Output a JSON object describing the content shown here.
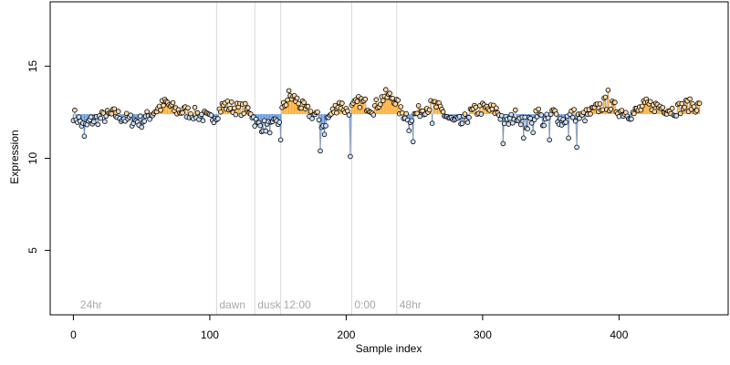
{
  "chart_data": {
    "type": "scatter",
    "title": "",
    "xlabel": "Sample index",
    "ylabel": "Expression",
    "xlim": [
      -17,
      480
    ],
    "ylim": [
      1.5,
      18.5
    ],
    "x_ticks": [
      0,
      100,
      200,
      300,
      400
    ],
    "y_ticks": [
      5,
      10,
      15
    ],
    "baseline": 12.4,
    "grid": false,
    "legend": "none",
    "annotations": [
      {
        "x": 3,
        "label": "24hr",
        "line": false
      },
      {
        "x": 105,
        "label": "dawn",
        "line": true
      },
      {
        "x": 133,
        "label": "dusk",
        "line": true
      },
      {
        "x": 152,
        "label": "12:00",
        "line": true
      },
      {
        "x": 204,
        "label": "0:00",
        "line": true
      },
      {
        "x": 237,
        "label": "48hr",
        "line": true
      }
    ],
    "colors": {
      "above": "#ffa726",
      "below": "#5b8fd8",
      "point_stroke": "#000000",
      "marker_line": "#d9d9d9",
      "annotation_text": "#a8a8a8"
    },
    "n_points": 460,
    "y_profile": [
      [
        0,
        12.4
      ],
      [
        5,
        12.0
      ],
      [
        8,
        11.6
      ],
      [
        12,
        12.0
      ],
      [
        20,
        12.2
      ],
      [
        30,
        12.4
      ],
      [
        40,
        12.1
      ],
      [
        50,
        12.0
      ],
      [
        55,
        12.3
      ],
      [
        62,
        12.7
      ],
      [
        68,
        13.0
      ],
      [
        75,
        12.6
      ],
      [
        85,
        12.5
      ],
      [
        95,
        12.3
      ],
      [
        100,
        12.1
      ],
      [
        105,
        12.4
      ],
      [
        110,
        12.9
      ],
      [
        120,
        12.7
      ],
      [
        130,
        12.6
      ],
      [
        132,
        12.2
      ],
      [
        135,
        11.8
      ],
      [
        145,
        11.7
      ],
      [
        150,
        11.9
      ],
      [
        153,
        12.6
      ],
      [
        158,
        13.4
      ],
      [
        163,
        13.2
      ],
      [
        170,
        12.6
      ],
      [
        178,
        12.3
      ],
      [
        183,
        11.8
      ],
      [
        190,
        12.5
      ],
      [
        195,
        13.0
      ],
      [
        200,
        12.6
      ],
      [
        204,
        12.7
      ],
      [
        210,
        13.1
      ],
      [
        220,
        12.7
      ],
      [
        228,
        13.4
      ],
      [
        235,
        13.3
      ],
      [
        240,
        12.5
      ],
      [
        248,
        12.2
      ],
      [
        256,
        12.7
      ],
      [
        265,
        12.9
      ],
      [
        272,
        12.4
      ],
      [
        278,
        12.0
      ],
      [
        285,
        11.9
      ],
      [
        292,
        12.5
      ],
      [
        300,
        12.7
      ],
      [
        310,
        12.6
      ],
      [
        318,
        11.9
      ],
      [
        325,
        12.4
      ],
      [
        333,
        11.8
      ],
      [
        340,
        12.6
      ],
      [
        345,
        11.9
      ],
      [
        352,
        12.5
      ],
      [
        358,
        12.0
      ],
      [
        366,
        12.4
      ],
      [
        372,
        12.2
      ],
      [
        380,
        12.5
      ],
      [
        390,
        13.0
      ],
      [
        400,
        12.6
      ],
      [
        410,
        12.4
      ],
      [
        420,
        12.9
      ],
      [
        430,
        12.8
      ],
      [
        440,
        12.6
      ],
      [
        450,
        12.9
      ],
      [
        460,
        12.8
      ]
    ],
    "outliers": [
      [
        8,
        11.2
      ],
      [
        152,
        11.0
      ],
      [
        181,
        10.4
      ],
      [
        184,
        11.3
      ],
      [
        203,
        10.1
      ],
      [
        246,
        11.5
      ],
      [
        249,
        10.9
      ],
      [
        263,
        11.9
      ],
      [
        315,
        10.8
      ],
      [
        330,
        11.1
      ],
      [
        337,
        11.4
      ],
      [
        349,
        11.0
      ],
      [
        363,
        11.1
      ],
      [
        369,
        10.6
      ],
      [
        392,
        13.7
      ],
      [
        425,
        12.9
      ]
    ]
  }
}
